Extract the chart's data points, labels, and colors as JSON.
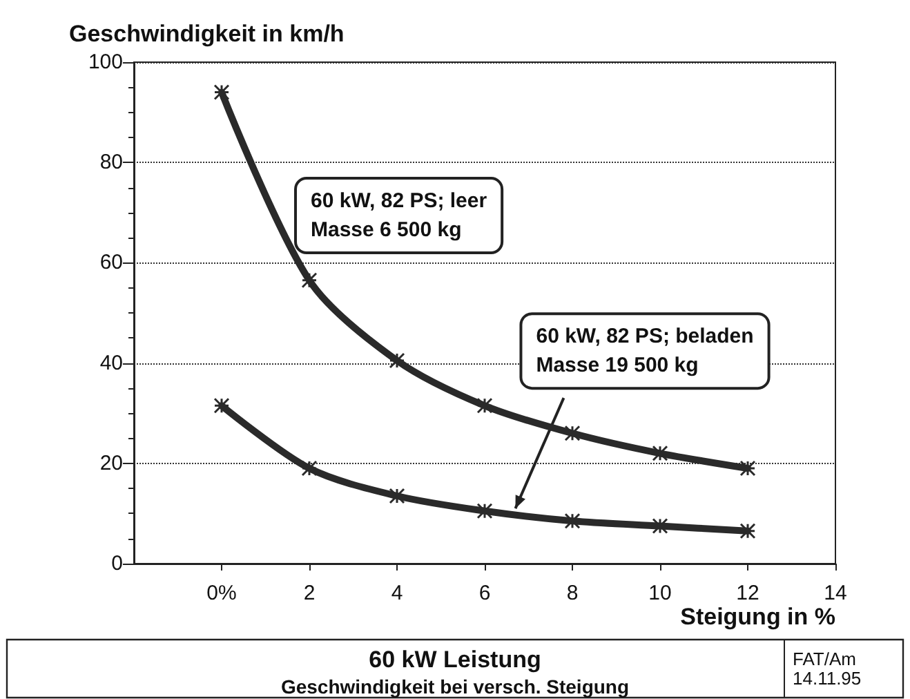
{
  "chart_data": {
    "type": "line",
    "title": "60 kW Leistung",
    "subtitle": "Geschwindigkeit bei versch. Steigung",
    "xlabel": "Steigung in %",
    "ylabel": "Geschwindigkeit in km/h",
    "x": [
      0,
      2,
      4,
      6,
      8,
      10,
      12
    ],
    "series": [
      {
        "color": "#2a2a2a",
        "values": [
          94,
          56.5,
          40.5,
          31.5,
          26,
          22,
          19
        ]
      },
      {
        "color": "#2a2a2a",
        "values": [
          31.5,
          19,
          13.5,
          10.5,
          8.5,
          7.5,
          6.5
        ]
      }
    ],
    "annotations": [
      "60 kW, 82 PS; leer\nMasse 6 500 kg",
      {
        "text": "60 kW, 82 PS; beladen\nMasse 19 500 kg",
        "x": 6.7,
        "y": 11
      },
      "FAT/Am\n14.11.95"
    ],
    "xlim": [
      -2,
      14
    ],
    "xticks": [
      {
        "value": 0,
        "label": "0%"
      },
      2,
      4,
      6,
      8,
      10,
      12,
      14
    ],
    "ylim": [
      0,
      100
    ],
    "yticks": [
      0,
      20,
      40,
      60,
      80,
      100
    ],
    "grid": "y",
    "marker": "cross",
    "line_style": "solid"
  }
}
